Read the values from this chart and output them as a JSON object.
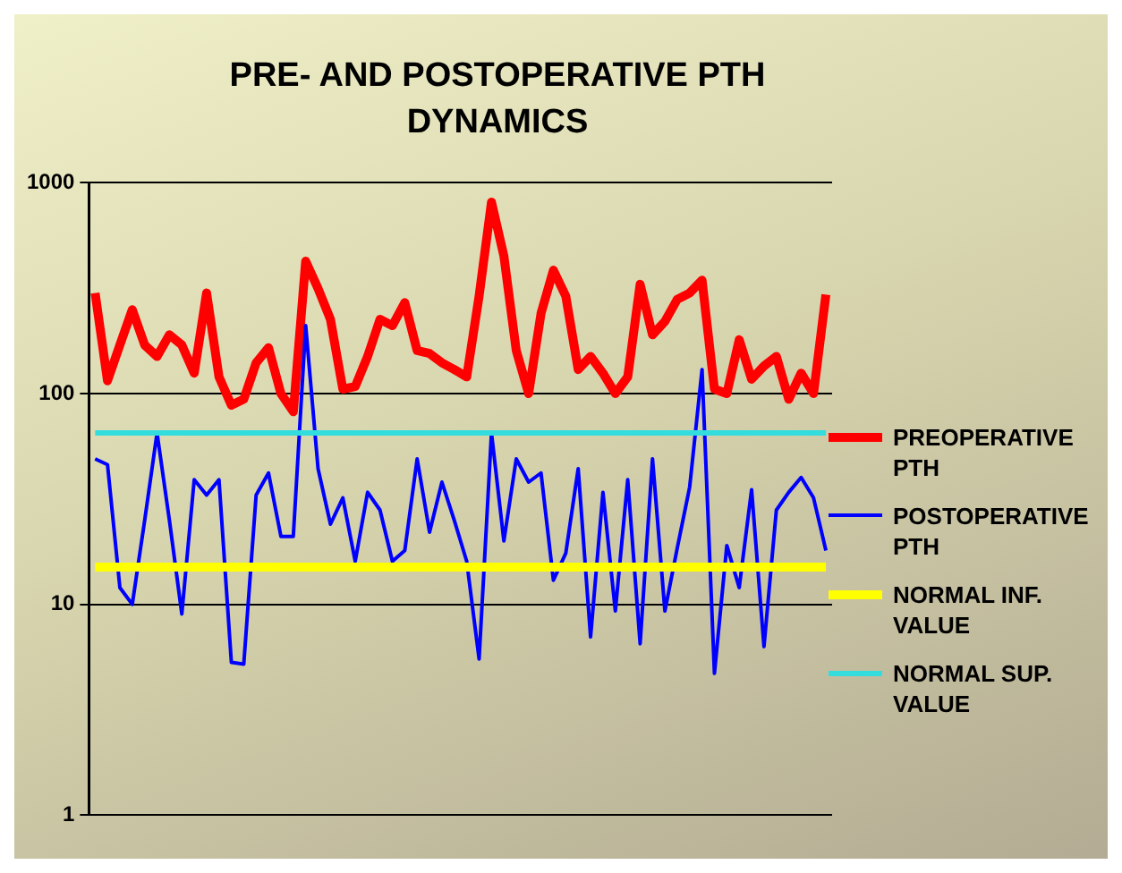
{
  "chart_data": {
    "type": "line",
    "title": "PRE- AND POSTOPERATIVE  PTH DYNAMICS",
    "categories": [
      null,
      null,
      null,
      null,
      null,
      null,
      null,
      null,
      null,
      null,
      null,
      null,
      null,
      null,
      null,
      null,
      null,
      null,
      null,
      null,
      null,
      null,
      null,
      null,
      null,
      null,
      null,
      null,
      null,
      null,
      null,
      null,
      null,
      null,
      null,
      null,
      null,
      null,
      null,
      null,
      null,
      null,
      null,
      null,
      null,
      null,
      null,
      null,
      null,
      null,
      null,
      null,
      null,
      null,
      null,
      null,
      null,
      null,
      null,
      null
    ],
    "series": [
      {
        "name": "PREOPERATIVE PTH",
        "color": "#ff0000",
        "values": [
          300,
          115,
          170,
          250,
          170,
          150,
          190,
          170,
          125,
          300,
          120,
          88,
          94,
          140,
          165,
          100,
          82,
          425,
          315,
          225,
          105,
          108,
          150,
          225,
          210,
          270,
          160,
          155,
          140,
          130,
          120,
          290,
          810,
          450,
          160,
          100,
          240,
          385,
          290,
          130,
          150,
          125,
          100,
          120,
          330,
          190,
          220,
          280,
          300,
          345,
          105,
          100,
          180,
          117,
          135,
          150,
          94,
          125,
          100,
          295
        ]
      },
      {
        "name": "POSTOPERATIVE PTH",
        "color": "#0000ff",
        "values": [
          49,
          46,
          12,
          10,
          25,
          65,
          25,
          9,
          39,
          33,
          39,
          5.3,
          5.2,
          33,
          42,
          21,
          21,
          210,
          44,
          24,
          32,
          16,
          34,
          28,
          16,
          18,
          49,
          22,
          38,
          25,
          16,
          5.5,
          65,
          20,
          49,
          38,
          42,
          13,
          17.5,
          44,
          7,
          34,
          9.3,
          39,
          6.5,
          49,
          9.3,
          18.5,
          36,
          130,
          4.7,
          19,
          12,
          35,
          6.3,
          28,
          34,
          40,
          32,
          18
        ]
      },
      {
        "name": "NORMAL INF. VALUE",
        "color": "#ffff00",
        "values": [
          15,
          15,
          15,
          15,
          15,
          15,
          15,
          15,
          15,
          15,
          15,
          15,
          15,
          15,
          15,
          15,
          15,
          15,
          15,
          15,
          15,
          15,
          15,
          15,
          15,
          15,
          15,
          15,
          15,
          15,
          15,
          15,
          15,
          15,
          15,
          15,
          15,
          15,
          15,
          15,
          15,
          15,
          15,
          15,
          15,
          15,
          15,
          15,
          15,
          15,
          15,
          15,
          15,
          15,
          15,
          15,
          15,
          15,
          15,
          15
        ]
      },
      {
        "name": "NORMAL SUP. VALUE",
        "color": "#33dddd",
        "values": [
          65,
          65,
          65,
          65,
          65,
          65,
          65,
          65,
          65,
          65,
          65,
          65,
          65,
          65,
          65,
          65,
          65,
          65,
          65,
          65,
          65,
          65,
          65,
          65,
          65,
          65,
          65,
          65,
          65,
          65,
          65,
          65,
          65,
          65,
          65,
          65,
          65,
          65,
          65,
          65,
          65,
          65,
          65,
          65,
          65,
          65,
          65,
          65,
          65,
          65,
          65,
          65,
          65,
          65,
          65,
          65,
          65,
          65,
          65,
          65
        ]
      }
    ],
    "log": true,
    "ylim": [
      1,
      1000
    ],
    "yticks": [
      1,
      10,
      100,
      1000
    ],
    "grid": "y",
    "legend": "right",
    "marker": "none",
    "line_style": "solid"
  }
}
